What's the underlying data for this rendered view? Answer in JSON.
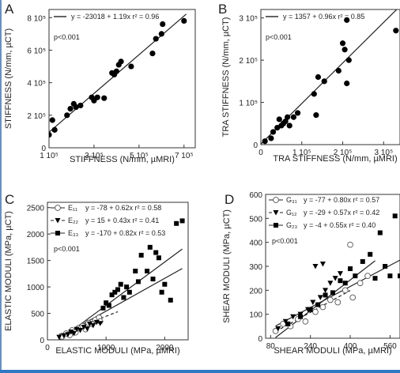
{
  "chart_data": [
    {
      "panel": "A",
      "type": "scatter",
      "xlabel": "STIFFNESS (N/mm, µMRI)",
      "ylabel": "STIFFNESS (N/mm, µCT)",
      "xlim": [
        100000,
        750000
      ],
      "ylim": [
        0,
        850000
      ],
      "xticks": [
        {
          "v": 100000,
          "label": "1 10⁵"
        },
        {
          "v": 300000,
          "label": "3 10⁵"
        },
        {
          "v": 500000,
          "label": "5 10⁵"
        },
        {
          "v": 700000,
          "label": "7 10⁵"
        }
      ],
      "yticks": [
        {
          "v": 0,
          "label": "0"
        },
        {
          "v": 200000,
          "label": "2 10⁵"
        },
        {
          "v": 400000,
          "label": "4 10⁵"
        },
        {
          "v": 600000,
          "label": "6 10⁵"
        },
        {
          "v": 800000,
          "label": "8 10⁵"
        }
      ],
      "legend": [
        "y = -23018 + 1.19x  r² = 0.96"
      ],
      "annotation": "p<0.001",
      "fit": {
        "intercept": -23018,
        "slope": 1.19,
        "x0": 100000,
        "x1": 710000
      },
      "series": [
        {
          "marker": "filled-circle",
          "points": [
            [
              100000,
              80000
            ],
            [
              115000,
              170000
            ],
            [
              125000,
              110000
            ],
            [
              180000,
              200000
            ],
            [
              195000,
              240000
            ],
            [
              210000,
              270000
            ],
            [
              220000,
              250000
            ],
            [
              240000,
              260000
            ],
            [
              290000,
              310000
            ],
            [
              300000,
              290000
            ],
            [
              315000,
              310000
            ],
            [
              345000,
              305000
            ],
            [
              380000,
              460000
            ],
            [
              390000,
              450000
            ],
            [
              400000,
              470000
            ],
            [
              410000,
              510000
            ],
            [
              420000,
              530000
            ],
            [
              465000,
              500000
            ],
            [
              560000,
              580000
            ],
            [
              575000,
              670000
            ],
            [
              600000,
              700000
            ],
            [
              605000,
              760000
            ],
            [
              700000,
              780000
            ]
          ]
        }
      ]
    },
    {
      "panel": "B",
      "type": "scatter",
      "xlabel": "TRA STIFFNESS (N/mm, µMRI)",
      "ylabel": "TRA STIFFNESS (N/mm, µCT)",
      "xlim": [
        0,
        340000
      ],
      "ylim": [
        0,
        320000
      ],
      "xticks": [
        {
          "v": 0,
          "label": "0"
        },
        {
          "v": 100000,
          "label": "1 10⁵"
        },
        {
          "v": 200000,
          "label": "2 10⁵"
        },
        {
          "v": 300000,
          "label": "3 10⁵"
        }
      ],
      "yticks": [
        {
          "v": 0,
          "label": "0"
        },
        {
          "v": 100000,
          "label": "1 10⁵"
        },
        {
          "v": 200000,
          "label": "2 10⁵"
        },
        {
          "v": 300000,
          "label": "3 10⁵"
        }
      ],
      "legend": [
        "y = 1357 + 0.96x  r² = 0.85"
      ],
      "annotation": "p<0.001",
      "fit": {
        "intercept": 1357,
        "slope": 0.96,
        "x0": 0,
        "x1": 340000
      },
      "series": [
        {
          "marker": "filled-circle",
          "points": [
            [
              10000,
              8000
            ],
            [
              25000,
              15000
            ],
            [
              30000,
              30000
            ],
            [
              40000,
              40000
            ],
            [
              45000,
              60000
            ],
            [
              50000,
              45000
            ],
            [
              55000,
              50000
            ],
            [
              60000,
              55000
            ],
            [
              65000,
              65000
            ],
            [
              70000,
              45000
            ],
            [
              80000,
              65000
            ],
            [
              90000,
              75000
            ],
            [
              135000,
              70000
            ],
            [
              130000,
              120000
            ],
            [
              140000,
              160000
            ],
            [
              155000,
              150000
            ],
            [
              190000,
              175000
            ],
            [
              200000,
              240000
            ],
            [
              205000,
              225000
            ],
            [
              215000,
              200000
            ],
            [
              210000,
              145000
            ],
            [
              210000,
              295000
            ],
            [
              330000,
              270000
            ]
          ]
        }
      ]
    },
    {
      "panel": "C",
      "type": "scatter",
      "xlabel": "ELASTIC MODULI (MPa, µMRI)",
      "ylabel": "ELASTIC MODULI (MPa, µCT)",
      "xlim": [
        0,
        2400
      ],
      "ylim": [
        0,
        2600
      ],
      "xticks": [
        {
          "v": 0,
          "label": "0"
        },
        {
          "v": 1000,
          "label": "1000"
        },
        {
          "v": 2000,
          "label": "2000"
        }
      ],
      "yticks": [
        {
          "v": 0,
          "label": "0"
        },
        {
          "v": 500,
          "label": "500"
        },
        {
          "v": 1000,
          "label": "1000"
        },
        {
          "v": 1500,
          "label": "1500"
        },
        {
          "v": 2000,
          "label": "2000"
        },
        {
          "v": 2500,
          "label": "2500"
        }
      ],
      "annotation": "p<0.001",
      "series": [
        {
          "name": "E₁₁",
          "legend": "y = -78 + 0.62x  r² = 0.58",
          "marker": "open-circle",
          "line": "solid",
          "fit": {
            "intercept": -78,
            "slope": 0.62,
            "x0": 200,
            "x1": 2300
          },
          "points": [
            [
              250,
              60
            ],
            [
              320,
              120
            ],
            [
              380,
              90
            ],
            [
              420,
              180
            ],
            [
              480,
              140
            ],
            [
              530,
              220
            ],
            [
              600,
              260
            ],
            [
              650,
              200
            ],
            [
              700,
              320
            ],
            [
              760,
              300
            ],
            [
              820,
              380
            ],
            [
              880,
              420
            ],
            [
              900,
              350
            ]
          ]
        },
        {
          "name": "E₂₂",
          "legend": "y = 15 + 0.43x  r² = 0.41",
          "marker": "filled-triangle",
          "line": "dashed",
          "fit": {
            "intercept": 15,
            "slope": 0.43,
            "x0": 200,
            "x1": 1200
          },
          "points": [
            [
              200,
              50
            ],
            [
              280,
              80
            ],
            [
              350,
              100
            ],
            [
              400,
              150
            ],
            [
              450,
              120
            ],
            [
              500,
              200
            ],
            [
              560,
              180
            ],
            [
              620,
              240
            ],
            [
              680,
              210
            ],
            [
              720,
              300
            ],
            [
              780,
              270
            ],
            [
              840,
              330
            ],
            [
              900,
              310
            ]
          ]
        },
        {
          "name": "E₃₃",
          "legend": "y = -170 + 0.82x  r² = 0.53",
          "marker": "filled-square",
          "line": "solid",
          "fit": {
            "intercept": -170,
            "slope": 0.82,
            "x0": 200,
            "x1": 2300
          },
          "points": [
            [
              950,
              600
            ],
            [
              1000,
              700
            ],
            [
              1050,
              650
            ],
            [
              1100,
              850
            ],
            [
              1150,
              900
            ],
            [
              1200,
              950
            ],
            [
              1250,
              1050
            ],
            [
              1300,
              800
            ],
            [
              1350,
              1000
            ],
            [
              1400,
              900
            ],
            [
              1500,
              1300
            ],
            [
              1550,
              1100
            ],
            [
              1600,
              1600
            ],
            [
              1700,
              1300
            ],
            [
              1750,
              1750
            ],
            [
              1800,
              1150
            ],
            [
              1850,
              1650
            ],
            [
              1900,
              1550
            ],
            [
              1950,
              900
            ],
            [
              2000,
              1050
            ],
            [
              2100,
              750
            ],
            [
              2200,
              2200
            ],
            [
              2300,
              2250
            ]
          ]
        }
      ]
    },
    {
      "panel": "D",
      "type": "scatter",
      "xlabel": "SHEAR MODULI (MPa, µMRI)",
      "ylabel": "SHEAR MODULI (MPa, µCT)",
      "xlim": [
        60,
        600
      ],
      "ylim": [
        0,
        600
      ],
      "xticks": [
        {
          "v": 80,
          "label": "80"
        },
        {
          "v": 240,
          "label": "240"
        },
        {
          "v": 400,
          "label": "400"
        },
        {
          "v": 560,
          "label": "560"
        }
      ],
      "yticks": [
        {
          "v": 0,
          "label": "0"
        },
        {
          "v": 100,
          "label": "100"
        },
        {
          "v": 200,
          "label": "200"
        },
        {
          "v": 300,
          "label": "300"
        },
        {
          "v": 400,
          "label": "400"
        },
        {
          "v": 500,
          "label": "500"
        },
        {
          "v": 600,
          "label": "600"
        }
      ],
      "annotation": "p<0.001",
      "series": [
        {
          "name": "G₃₁",
          "legend": "y = -77 + 0.80x  r² = 0.57",
          "marker": "open-circle",
          "line": "solid",
          "fit": {
            "intercept": -77,
            "slope": 0.8,
            "x0": 100,
            "x1": 500
          },
          "points": [
            [
              100,
              30
            ],
            [
              130,
              60
            ],
            [
              160,
              50
            ],
            [
              190,
              80
            ],
            [
              220,
              70
            ],
            [
              260,
              110
            ],
            [
              290,
              130
            ],
            [
              320,
              160
            ],
            [
              350,
              150
            ],
            [
              380,
              200
            ],
            [
              410,
              170
            ],
            [
              440,
              230
            ],
            [
              470,
              260
            ],
            [
              400,
              390
            ]
          ]
        },
        {
          "name": "G₁₂",
          "legend": "y = -29 + 0.57x  r² = 0.42",
          "marker": "filled-triangle",
          "line": "dashed",
          "fit": {
            "intercept": -29,
            "slope": 0.57,
            "x0": 100,
            "x1": 400
          },
          "points": [
            [
              110,
              40
            ],
            [
              140,
              70
            ],
            [
              170,
              90
            ],
            [
              200,
              100
            ],
            [
              230,
              120
            ],
            [
              250,
              150
            ],
            [
              280,
              170
            ],
            [
              300,
              200
            ],
            [
              320,
              230
            ],
            [
              340,
              250
            ],
            [
              360,
              270
            ],
            [
              260,
              300
            ],
            [
              290,
              310
            ]
          ]
        },
        {
          "name": "G₂₃",
          "legend": "y = -4 + 0.55x  r² = 0.40",
          "marker": "filled-square",
          "line": "solid",
          "fit": {
            "intercept": -4,
            "slope": 0.55,
            "x0": 100,
            "x1": 600
          },
          "points": [
            [
              150,
              60
            ],
            [
              200,
              90
            ],
            [
              240,
              120
            ],
            [
              270,
              140
            ],
            [
              300,
              180
            ],
            [
              330,
              190
            ],
            [
              360,
              240
            ],
            [
              380,
              230
            ],
            [
              400,
              290
            ],
            [
              420,
              260
            ],
            [
              450,
              320
            ],
            [
              480,
              350
            ],
            [
              500,
              250
            ],
            [
              520,
              440
            ],
            [
              540,
              300
            ],
            [
              560,
              260
            ],
            [
              580,
              510
            ],
            [
              600,
              260
            ]
          ]
        }
      ]
    }
  ]
}
